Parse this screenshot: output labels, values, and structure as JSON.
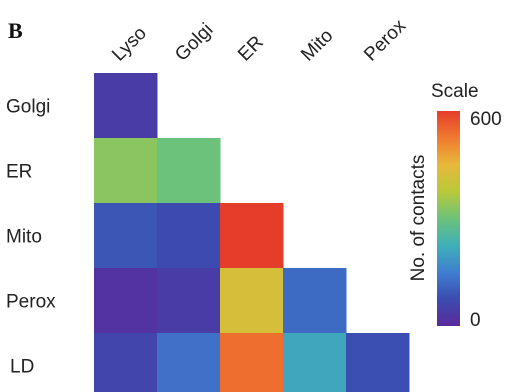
{
  "panel_label": "B",
  "chart_data": {
    "type": "heatmap",
    "shape": "lower-triangle",
    "title": "",
    "columns": [
      "Lyso",
      "Golgi",
      "ER",
      "Mito",
      "Perox"
    ],
    "rows": [
      "Golgi",
      "ER",
      "Mito",
      "Perox",
      "LD"
    ],
    "values": [
      [
        40,
        null,
        null,
        null,
        null
      ],
      [
        330,
        300,
        null,
        null,
        null
      ],
      [
        90,
        70,
        600,
        null,
        null
      ],
      [
        20,
        40,
        420,
        120,
        null
      ],
      [
        60,
        130,
        540,
        210,
        80
      ]
    ],
    "colorbar": {
      "title": "Scale",
      "label": "No. of contacts",
      "min": 0,
      "max": 600,
      "tick_labels": [
        "600",
        "0"
      ],
      "colormap": [
        "#5a2a9c",
        "#3b4cb0",
        "#3f7fd0",
        "#3fb0b8",
        "#6cc27a",
        "#b8c93a",
        "#e8b83a",
        "#f07a30",
        "#e43e2a"
      ]
    }
  }
}
